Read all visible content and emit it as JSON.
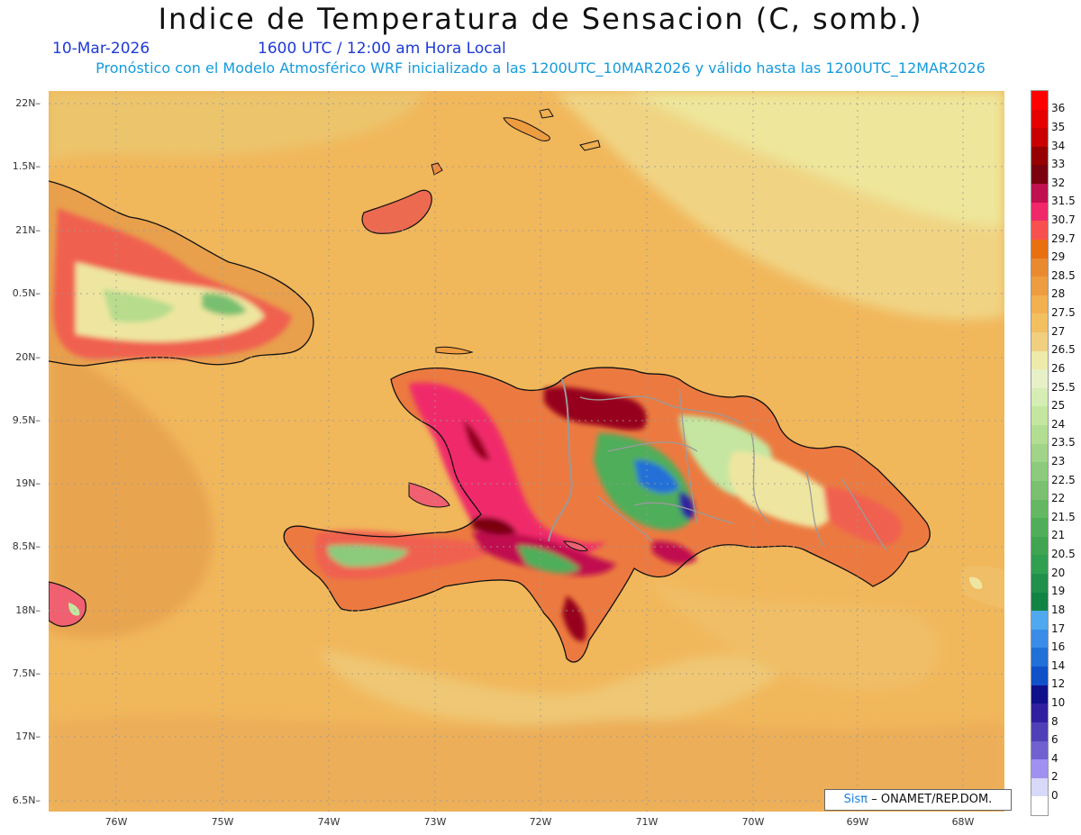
{
  "title": "Indice de Temperatura de Sensacion (C, somb.)",
  "date": "10-Mar-2026",
  "time": "1600 UTC / 12:00 am Hora Local",
  "forecast": "Pronóstico con el Modelo Atmosférico WRF inicializado a las 1200UTC_10MAR2026 y válido hasta las  1200UTC_12MAR2026",
  "lat_labels": [
    "22N",
    "1.5N",
    "21N",
    "0.5N",
    "20N",
    "9.5N",
    "19N",
    "8.5N",
    "18N",
    "7.5N",
    "17N",
    "6.5N"
  ],
  "lon_labels": [
    "76W",
    "75W",
    "74W",
    "73W",
    "72W",
    "71W",
    "70W",
    "69W",
    "68W"
  ],
  "legend": [
    {
      "label": "36",
      "color": "#ff0000"
    },
    {
      "label": "35",
      "color": "#e60000"
    },
    {
      "label": "34",
      "color": "#c80000"
    },
    {
      "label": "33",
      "color": "#960000"
    },
    {
      "label": "32",
      "color": "#7a0010"
    },
    {
      "label": "31.5",
      "color": "#c01050"
    },
    {
      "label": "30.7",
      "color": "#f0286a"
    },
    {
      "label": "29.7",
      "color": "#f85050"
    },
    {
      "label": "29",
      "color": "#e87010"
    },
    {
      "label": "28.5",
      "color": "#ea8a30"
    },
    {
      "label": "28",
      "color": "#ee9c40"
    },
    {
      "label": "27.5",
      "color": "#f2b050"
    },
    {
      "label": "27",
      "color": "#f2c060"
    },
    {
      "label": "26.5",
      "color": "#f0d080"
    },
    {
      "label": "26",
      "color": "#eeeaaa"
    },
    {
      "label": "25.5",
      "color": "#e8f0c8"
    },
    {
      "label": "25",
      "color": "#d6eeb6"
    },
    {
      "label": "24",
      "color": "#c4e6a0"
    },
    {
      "label": "23.5",
      "color": "#b2de92"
    },
    {
      "label": "23",
      "color": "#a0d488"
    },
    {
      "label": "22.5",
      "color": "#8cca7c"
    },
    {
      "label": "22",
      "color": "#7ac070"
    },
    {
      "label": "21.5",
      "color": "#64b864"
    },
    {
      "label": "21",
      "color": "#50ae5a"
    },
    {
      "label": "20.5",
      "color": "#40a450"
    },
    {
      "label": "20",
      "color": "#30a050"
    },
    {
      "label": "19",
      "color": "#20904a"
    },
    {
      "label": "18",
      "color": "#108444"
    },
    {
      "label": "17",
      "color": "#50a8f0"
    },
    {
      "label": "16",
      "color": "#3a8ce8"
    },
    {
      "label": "14",
      "color": "#2070d8"
    },
    {
      "label": "12",
      "color": "#1050c8"
    },
    {
      "label": "10",
      "color": "#10108c"
    },
    {
      "label": "8",
      "color": "#3020a0"
    },
    {
      "label": "6",
      "color": "#5040b8"
    },
    {
      "label": "4",
      "color": "#7060d0"
    },
    {
      "label": "2",
      "color": "#a090f0"
    },
    {
      "label": "0",
      "color": "#d8d8f8"
    },
    {
      "label": "",
      "color": "#ffffff"
    }
  ],
  "credit_prefix": "Sisπ",
  "credit_text": "– ONAMET/REP.DOM."
}
